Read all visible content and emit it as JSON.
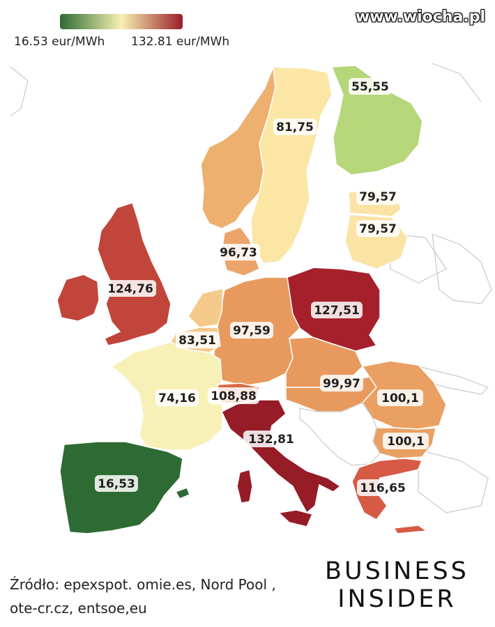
{
  "legend": {
    "min_label": "16.53 eur/MWh",
    "max_label": "132.81 eur/MWh",
    "min_color": "#2e6b34",
    "mid_color": "#f6f1b0",
    "max_color": "#9a1e2a"
  },
  "watermark": "www.wiocha.pl",
  "regions": [
    {
      "name": "Finland",
      "value": "55,55",
      "color": "#b6d67a"
    },
    {
      "name": "Sweden",
      "value": "81,75",
      "color": "#fbe6a6"
    },
    {
      "name": "Norway",
      "value": "",
      "color": "#eeb06e"
    },
    {
      "name": "Latvia",
      "value": "79,57",
      "color": "#fbe3a6"
    },
    {
      "name": "Lithuania",
      "value": "79,57",
      "color": "#fbe3a6"
    },
    {
      "name": "Denmark",
      "value": "96,73",
      "color": "#eda46a"
    },
    {
      "name": "Great Britain",
      "value": "124,76",
      "color": "#c1453a"
    },
    {
      "name": "Ireland",
      "value": "",
      "color": "#c1453a"
    },
    {
      "name": "Poland",
      "value": "127,51",
      "color": "#a5202b"
    },
    {
      "name": "Germany",
      "value": "97,59",
      "color": "#e89a5e"
    },
    {
      "name": "Belgium",
      "value": "83,51",
      "color": "#f4c98a"
    },
    {
      "name": "France",
      "value": "74,16",
      "color": "#f7f1b8"
    },
    {
      "name": "Switzerland",
      "value": "108,88",
      "color": "#d96a48"
    },
    {
      "name": "Italy",
      "value": "132,81",
      "color": "#961c28"
    },
    {
      "name": "Hungary",
      "value": "99,97",
      "color": "#e89a5e"
    },
    {
      "name": "Romania",
      "value": "100,1",
      "color": "#e9a062"
    },
    {
      "name": "Bulgaria",
      "value": "100,1",
      "color": "#e9a062"
    },
    {
      "name": "Greece",
      "value": "116,65",
      "color": "#d65a45"
    },
    {
      "name": "Spain",
      "value": "16,53",
      "color": "#2e6b34"
    }
  ],
  "source": {
    "line1": "Źródło: epexspot. omie.es, Nord Pool ,",
    "line2": "ote-cr.cz, entsoe,eu"
  },
  "logo": {
    "line1": "BUSINESS",
    "line2": "INSIDER"
  }
}
